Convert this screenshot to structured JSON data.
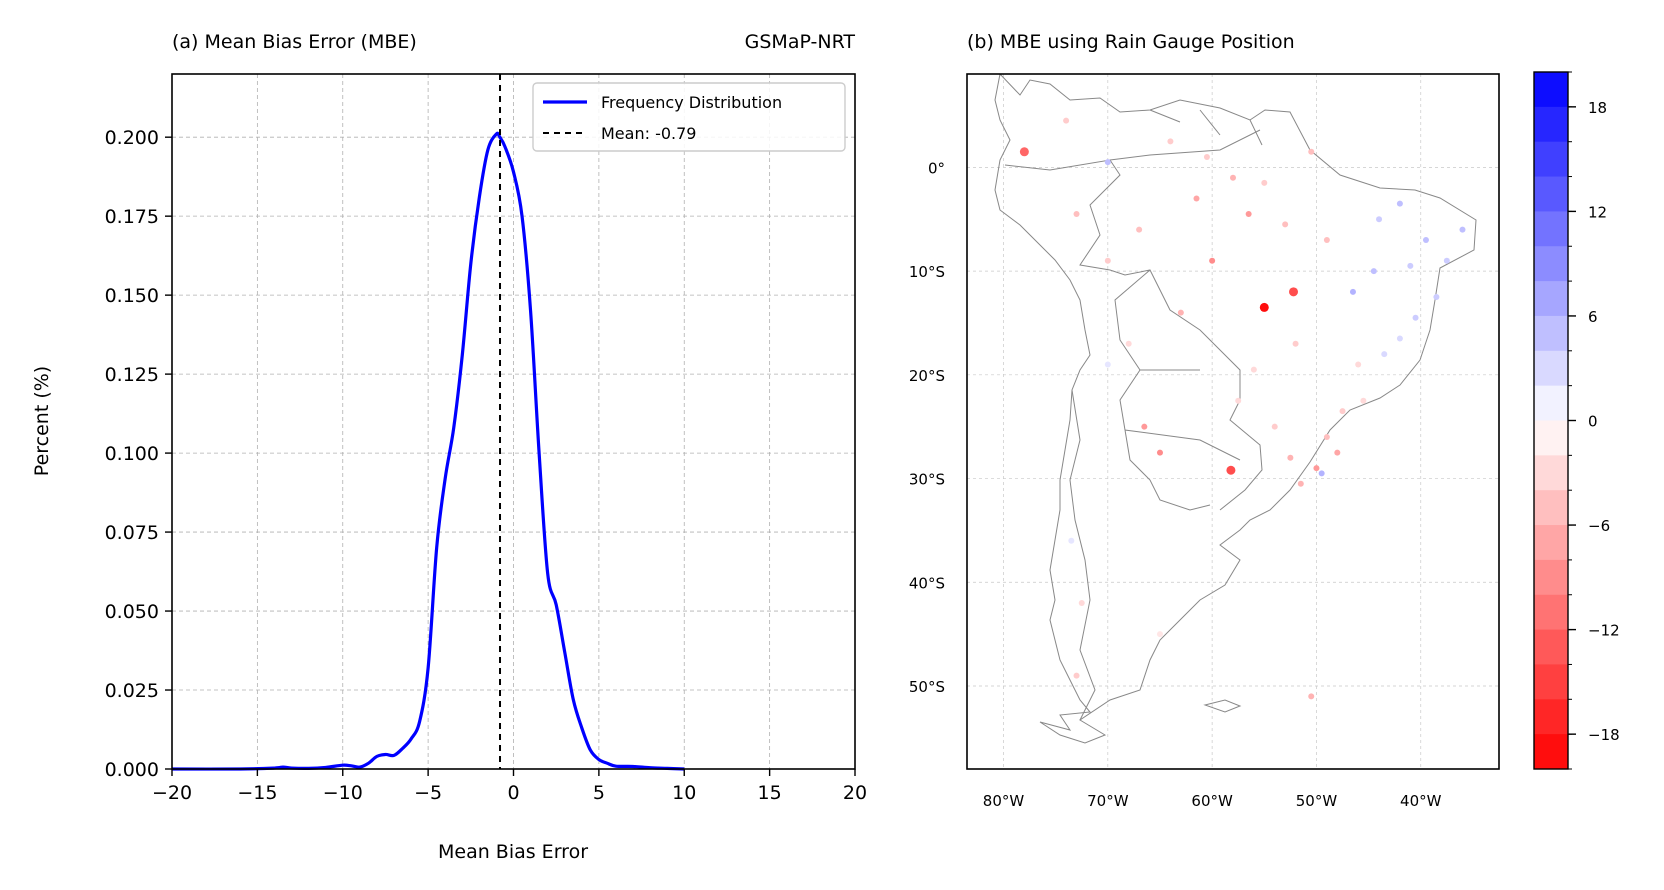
{
  "chart_data": [
    {
      "type": "line",
      "panel_title": "(a) Mean Bias Error (MBE)",
      "right_title": "GSMaP-NRT",
      "xlabel": "Mean Bias Error",
      "ylabel": "Percent (%)",
      "xlim": [
        -20,
        20
      ],
      "ylim": [
        0,
        0.22
      ],
      "xticks": [
        -20,
        -15,
        -10,
        -5,
        0,
        5,
        10,
        15,
        20
      ],
      "xtick_labels": [
        "−20",
        "−15",
        "−10",
        "−5",
        "0",
        "5",
        "10",
        "15",
        "20"
      ],
      "yticks": [
        0,
        0.025,
        0.05,
        0.075,
        0.1,
        0.125,
        0.15,
        0.175,
        0.2
      ],
      "ytick_labels": [
        "0.000",
        "0.025",
        "0.050",
        "0.075",
        "0.100",
        "0.125",
        "0.150",
        "0.175",
        "0.200"
      ],
      "grid": true,
      "legend_position": "upper-right",
      "series": [
        {
          "name": "Frequency Distribution",
          "color": "#0000ff",
          "x": [
            -20,
            -16,
            -14,
            -13.5,
            -13,
            -12,
            -11,
            -10,
            -9.5,
            -9,
            -8.5,
            -8,
            -7.5,
            -7,
            -6.5,
            -6,
            -5.5,
            -5,
            -4.5,
            -4,
            -3.5,
            -3,
            -2.5,
            -2,
            -1.5,
            -1,
            -0.8,
            -0.5,
            0,
            0.5,
            1,
            1.5,
            2,
            2.5,
            3,
            3.5,
            4,
            4.5,
            5,
            5.5,
            6,
            7,
            8,
            9,
            10
          ],
          "y": [
            0,
            0,
            0.0003,
            0.0006,
            0.0003,
            0.0002,
            0.0005,
            0.0012,
            0.001,
            0.0006,
            0.0018,
            0.004,
            0.0046,
            0.0043,
            0.0065,
            0.0095,
            0.015,
            0.032,
            0.07,
            0.092,
            0.108,
            0.131,
            0.16,
            0.181,
            0.196,
            0.201,
            0.2,
            0.197,
            0.189,
            0.175,
            0.145,
            0.1,
            0.062,
            0.052,
            0.037,
            0.022,
            0.013,
            0.006,
            0.003,
            0.0018,
            0.0009,
            0.0008,
            0.0004,
            0.0002,
            0
          ]
        }
      ],
      "reference_lines": [
        {
          "name": "Mean: -0.79",
          "x": -0.79,
          "color": "#000000",
          "style": "dashed"
        }
      ]
    },
    {
      "type": "scatter",
      "panel_title": "(b) MBE using Rain Gauge Position",
      "lon_ticks": [
        -80,
        -70,
        -60,
        -50,
        -40
      ],
      "lon_tick_labels": [
        "80°W",
        "70°W",
        "60°W",
        "50°W",
        "40°W"
      ],
      "lat_ticks": [
        0,
        -10,
        -20,
        -30,
        -40,
        -50
      ],
      "lat_tick_labels": [
        "0°",
        "10°S",
        "20°S",
        "30°S",
        "40°S",
        "50°S"
      ],
      "lon_range": [
        -83.5,
        -32.5
      ],
      "lat_range": [
        -58,
        9
      ],
      "grid": true,
      "colormap": "bwr (red = negative, blue = positive)",
      "color_range": [
        -20,
        20
      ],
      "colorbar_ticks": [
        18,
        12,
        6,
        0,
        -6,
        -12,
        -18
      ],
      "colorbar_tick_labels": [
        "18",
        "12",
        "6",
        "0",
        "−6",
        "−12",
        "−18"
      ],
      "points": [
        {
          "lon": -55.0,
          "lat": -13.5,
          "value": -19
        },
        {
          "lon": -52.2,
          "lat": -12.0,
          "value": -14
        },
        {
          "lon": -58.2,
          "lat": -29.2,
          "value": -14
        },
        {
          "lon": -78.0,
          "lat": 1.5,
          "value": -12
        },
        {
          "lon": -65.0,
          "lat": -27.5,
          "value": -9
        },
        {
          "lon": -66.5,
          "lat": -25.0,
          "value": -8
        },
        {
          "lon": -60.0,
          "lat": -9.0,
          "value": -9
        },
        {
          "lon": -56.5,
          "lat": -4.5,
          "value": -8
        },
        {
          "lon": -61.5,
          "lat": -3.0,
          "value": -7
        },
        {
          "lon": -63.0,
          "lat": -14.0,
          "value": -6
        },
        {
          "lon": -58.0,
          "lat": -1.0,
          "value": -6
        },
        {
          "lon": -53.0,
          "lat": -5.5,
          "value": -5
        },
        {
          "lon": -48.0,
          "lat": -27.5,
          "value": -7
        },
        {
          "lon": -50.0,
          "lat": -29.0,
          "value": -8
        },
        {
          "lon": -51.5,
          "lat": -30.5,
          "value": -6
        },
        {
          "lon": -49.0,
          "lat": -26.0,
          "value": -5
        },
        {
          "lon": -52.5,
          "lat": -28.0,
          "value": -6
        },
        {
          "lon": -47.5,
          "lat": -23.5,
          "value": -4
        },
        {
          "lon": -45.5,
          "lat": -22.5,
          "value": -3
        },
        {
          "lon": -50.5,
          "lat": -51.0,
          "value": -6
        },
        {
          "lon": -74.0,
          "lat": 4.5,
          "value": -4
        },
        {
          "lon": -73.0,
          "lat": -4.5,
          "value": -5
        },
        {
          "lon": -70.0,
          "lat": -9.0,
          "value": -4
        },
        {
          "lon": -67.0,
          "lat": -6.0,
          "value": -5
        },
        {
          "lon": -64.0,
          "lat": 2.5,
          "value": -4
        },
        {
          "lon": -60.5,
          "lat": 1.0,
          "value": -4
        },
        {
          "lon": -55.0,
          "lat": -1.5,
          "value": -4
        },
        {
          "lon": -50.5,
          "lat": 1.5,
          "value": -5
        },
        {
          "lon": -49.0,
          "lat": -7.0,
          "value": -5
        },
        {
          "lon": -52.0,
          "lat": -17.0,
          "value": -4
        },
        {
          "lon": -56.0,
          "lat": -19.5,
          "value": -3
        },
        {
          "lon": -46.0,
          "lat": -19.0,
          "value": -3
        },
        {
          "lon": -68.0,
          "lat": -17.0,
          "value": -3
        },
        {
          "lon": -72.5,
          "lat": -42.0,
          "value": -3
        },
        {
          "lon": -73.0,
          "lat": -49.0,
          "value": -4
        },
        {
          "lon": -65.0,
          "lat": -45.0,
          "value": -2
        },
        {
          "lon": -54.0,
          "lat": -25.0,
          "value": -4
        },
        {
          "lon": -57.5,
          "lat": -22.5,
          "value": -3
        },
        {
          "lon": -44.0,
          "lat": -5.0,
          "value": 4
        },
        {
          "lon": -42.0,
          "lat": -3.5,
          "value": 5
        },
        {
          "lon": -39.5,
          "lat": -7.0,
          "value": 5
        },
        {
          "lon": -37.5,
          "lat": -9.0,
          "value": 4
        },
        {
          "lon": -38.5,
          "lat": -12.5,
          "value": 4
        },
        {
          "lon": -40.5,
          "lat": -14.5,
          "value": 4
        },
        {
          "lon": -42.0,
          "lat": -16.5,
          "value": 3
        },
        {
          "lon": -44.5,
          "lat": -10.0,
          "value": 5
        },
        {
          "lon": -46.5,
          "lat": -12.0,
          "value": 6
        },
        {
          "lon": -36.0,
          "lat": -6.0,
          "value": 5
        },
        {
          "lon": -41.0,
          "lat": -9.5,
          "value": 4
        },
        {
          "lon": -43.5,
          "lat": -18.0,
          "value": 3
        },
        {
          "lon": -70.0,
          "lat": 0.5,
          "value": 5
        },
        {
          "lon": -49.5,
          "lat": -29.5,
          "value": 6
        },
        {
          "lon": -73.5,
          "lat": -36.0,
          "value": 2
        },
        {
          "lon": -70.0,
          "lat": -19.0,
          "value": 2
        }
      ]
    }
  ]
}
